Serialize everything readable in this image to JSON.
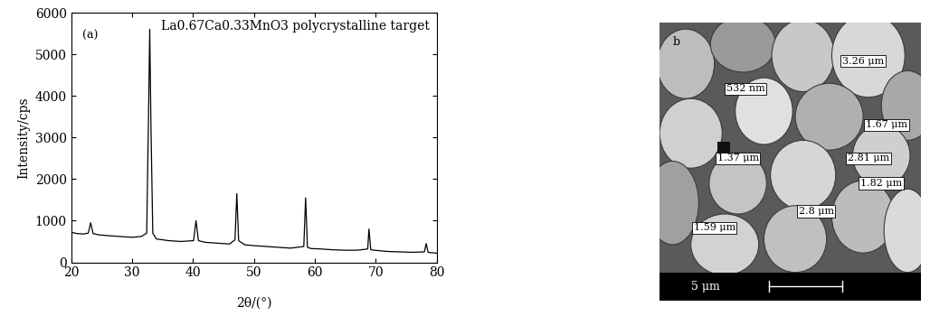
{
  "chart_data": {
    "type": "line",
    "title": "La0.67Ca0.33MnO3 polycrystalline target",
    "annotations": [
      "(a)"
    ],
    "x_label": "2θ/(°)",
    "y_label": "Intensity/cps",
    "x": [
      20,
      21,
      22,
      22.8,
      23.2,
      23.6,
      24.5,
      26,
      28,
      30,
      31.5,
      32.4,
      32.7,
      32.9,
      33.1,
      33.4,
      34,
      36,
      38,
      40.1,
      40.5,
      40.9,
      42,
      44,
      46,
      46.9,
      47.2,
      47.5,
      48.5,
      50,
      52,
      54,
      56,
      58.2,
      58.5,
      58.8,
      59.4,
      61,
      63,
      65,
      67,
      68.7,
      68.9,
      69.2,
      70.5,
      72,
      74,
      76,
      78.0,
      78.3,
      78.6,
      79.2,
      80
    ],
    "values": [
      720,
      690,
      680,
      700,
      950,
      690,
      660,
      640,
      620,
      600,
      620,
      700,
      3500,
      5600,
      3300,
      700,
      560,
      520,
      500,
      520,
      1000,
      520,
      480,
      460,
      440,
      540,
      1650,
      520,
      420,
      400,
      380,
      360,
      340,
      380,
      1550,
      360,
      330,
      320,
      300,
      290,
      290,
      320,
      800,
      300,
      280,
      260,
      250,
      240,
      250,
      450,
      240,
      230,
      220
    ],
    "color": "#000000",
    "xlim": [
      20,
      80
    ],
    "xticks": [
      20,
      30,
      40,
      50,
      60,
      70,
      80
    ],
    "ylim": [
      0,
      6000
    ],
    "yticks": [
      0,
      1000,
      2000,
      3000,
      4000,
      5000,
      6000
    ],
    "grid": false
  },
  "sem_image": {
    "panel_label": "b",
    "annotations": [
      "3.26 μm",
      "532 nm",
      "1.67 μm",
      "2.81 μm",
      "1.37 μm",
      "1.82 μm",
      "2.8 μm",
      "1.59 μm"
    ],
    "scale_bar": "5 μm"
  }
}
